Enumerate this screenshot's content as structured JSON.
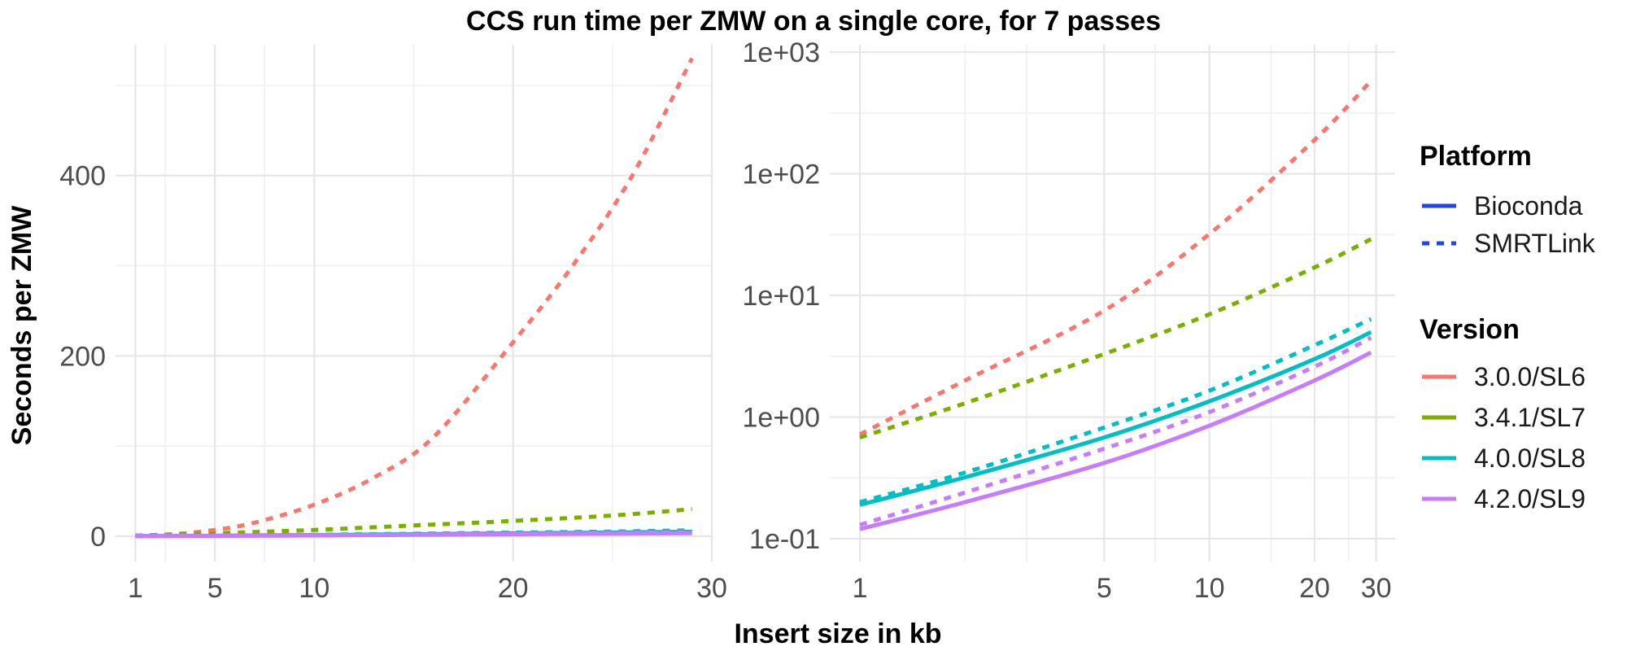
{
  "title": "CCS run time per ZMW on a single core, for 7 passes",
  "xlabel": "Insert size in kb",
  "ylabel": "Seconds per ZMW",
  "colors": {
    "3.0.0/SL6": "#F8766D",
    "3.4.1/SL7": "#7CAE00",
    "4.0.0/SL8": "#00BFC4",
    "4.2.0/SL9": "#C77CFF",
    "platform_key": "#2244ee"
  },
  "legend": {
    "platform_title": "Platform",
    "platform_items": [
      {
        "label": "Bioconda",
        "linetype": "solid"
      },
      {
        "label": "SMRTLink",
        "linetype": "dashed"
      }
    ],
    "version_title": "Version",
    "version_items": [
      "3.0.0/SL6",
      "3.4.1/SL7",
      "4.0.0/SL8",
      "4.2.0/SL9"
    ],
    "placement": "right"
  },
  "chart_data": [
    {
      "type": "line",
      "scale": "linear",
      "xlim": [
        0,
        30
      ],
      "ylim": [
        -28,
        545
      ],
      "x_ticks": [
        1,
        5,
        10,
        20,
        30
      ],
      "x_tick_labels": [
        "1",
        "5",
        "10",
        "20",
        "30"
      ],
      "y_ticks": [
        0,
        200,
        400
      ],
      "y_tick_labels": [
        "0",
        "200",
        "400"
      ],
      "grid": true,
      "series": [
        {
          "version": "3.0.0/SL6",
          "platform": "SMRTLink",
          "x": [
            1,
            3,
            5,
            7,
            10,
            13,
            16,
            20,
            23,
            26,
            29
          ],
          "y": [
            0.7,
            2.5,
            7,
            15,
            35,
            65,
            110,
            215,
            300,
            400,
            530
          ]
        },
        {
          "version": "3.4.1/SL7",
          "platform": "SMRTLink",
          "x": [
            1,
            5,
            10,
            15,
            20,
            25,
            29
          ],
          "y": [
            0.7,
            3.3,
            7,
            12,
            17,
            23,
            30
          ]
        },
        {
          "version": "4.0.0/SL8",
          "platform": "SMRTLink",
          "x": [
            1,
            5,
            10,
            15,
            20,
            25,
            29
          ],
          "y": [
            0.2,
            0.8,
            1.6,
            2.8,
            4,
            5.2,
            6.5
          ]
        },
        {
          "version": "4.0.0/SL8",
          "platform": "Bioconda",
          "x": [
            1,
            5,
            10,
            15,
            20,
            25,
            29
          ],
          "y": [
            0.18,
            0.65,
            1.3,
            2.2,
            3.2,
            4.1,
            5
          ]
        },
        {
          "version": "4.2.0/SL9",
          "platform": "SMRTLink",
          "x": [
            1,
            5,
            10,
            15,
            20,
            25,
            29
          ],
          "y": [
            0.13,
            0.5,
            1.1,
            1.9,
            2.8,
            3.7,
            4.5
          ]
        },
        {
          "version": "4.2.0/SL9",
          "platform": "Bioconda",
          "x": [
            1,
            5,
            10,
            15,
            20,
            25,
            29
          ],
          "y": [
            0.12,
            0.4,
            0.85,
            1.5,
            2.2,
            2.9,
            3.4
          ]
        }
      ]
    },
    {
      "type": "line",
      "scale": "log10",
      "xlim": [
        0.82,
        34
      ],
      "ylim": [
        0.065,
        1150
      ],
      "x_ticks": [
        1,
        5,
        10,
        20,
        30
      ],
      "x_tick_labels": [
        "1",
        "5",
        "10",
        "20",
        "30"
      ],
      "y_ticks": [
        0.1,
        1,
        10,
        100,
        1000
      ],
      "y_tick_labels": [
        "1e-01",
        "1e+00",
        "1e+01",
        "1e+02",
        "1e+03"
      ],
      "grid": true,
      "series": [
        {
          "version": "3.0.0/SL6",
          "platform": "SMRTLink",
          "x": [
            1,
            2,
            5,
            10,
            20,
            29
          ],
          "y": [
            0.72,
            2.0,
            7.5,
            32,
            190,
            580
          ]
        },
        {
          "version": "3.4.1/SL7",
          "platform": "SMRTLink",
          "x": [
            1,
            2,
            5,
            10,
            20,
            29
          ],
          "y": [
            0.68,
            1.3,
            3.3,
            7,
            17,
            29
          ]
        },
        {
          "version": "4.0.0/SL8",
          "platform": "SMRTLink",
          "x": [
            1,
            2,
            5,
            10,
            20,
            29
          ],
          "y": [
            0.2,
            0.35,
            0.82,
            1.65,
            3.9,
            6.4
          ]
        },
        {
          "version": "4.0.0/SL8",
          "platform": "Bioconda",
          "x": [
            1,
            2,
            5,
            10,
            20,
            29
          ],
          "y": [
            0.19,
            0.32,
            0.68,
            1.35,
            3.0,
            5.0
          ]
        },
        {
          "version": "4.2.0/SL9",
          "platform": "SMRTLink",
          "x": [
            1,
            2,
            5,
            10,
            20,
            29
          ],
          "y": [
            0.13,
            0.24,
            0.55,
            1.1,
            2.6,
            4.5
          ]
        },
        {
          "version": "4.2.0/SL9",
          "platform": "Bioconda",
          "x": [
            1,
            2,
            5,
            10,
            20,
            29
          ],
          "y": [
            0.12,
            0.2,
            0.42,
            0.85,
            2.0,
            3.4
          ]
        }
      ]
    }
  ]
}
